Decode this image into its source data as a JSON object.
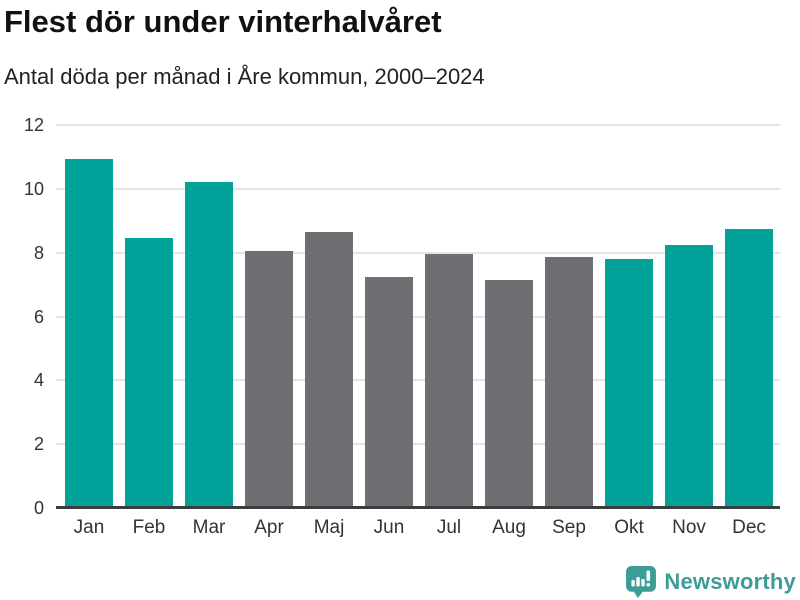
{
  "header": {
    "title": "Flest dör under vinterhalvåret",
    "subtitle": "Antal döda per månad i Åre kommun, 2000–2024"
  },
  "chart_data": {
    "type": "bar",
    "title": "Flest dör under vinterhalvåret",
    "subtitle": "Antal döda per månad i Åre kommun, 2000–2024",
    "categories": [
      "Jan",
      "Feb",
      "Mar",
      "Apr",
      "Maj",
      "Jun",
      "Jul",
      "Aug",
      "Sep",
      "Okt",
      "Nov",
      "Dec"
    ],
    "values": [
      10.95,
      8.45,
      10.2,
      8.05,
      8.65,
      7.25,
      7.95,
      7.15,
      7.85,
      7.8,
      8.25,
      8.75
    ],
    "bar_colors": [
      "teal",
      "teal",
      "teal",
      "gray",
      "gray",
      "gray",
      "gray",
      "gray",
      "gray",
      "teal",
      "teal",
      "teal"
    ],
    "colors": {
      "teal": "#00a29a",
      "gray": "#6e6e73"
    },
    "xlabel": "",
    "ylabel": "",
    "ylim": [
      0,
      12
    ],
    "yticks": [
      0,
      2,
      4,
      6,
      8,
      10,
      12
    ],
    "grid": "horizontal",
    "gridline_color": "#e4e4e4",
    "axis_line_color": "#3e3e3e",
    "tick_label_color": "#333333",
    "legend": "none"
  },
  "footer": {
    "brand": "Newsworthy",
    "brand_color": "#3d9c96",
    "logo_icon": "bar-chart-exclamation-speech-bubble"
  }
}
